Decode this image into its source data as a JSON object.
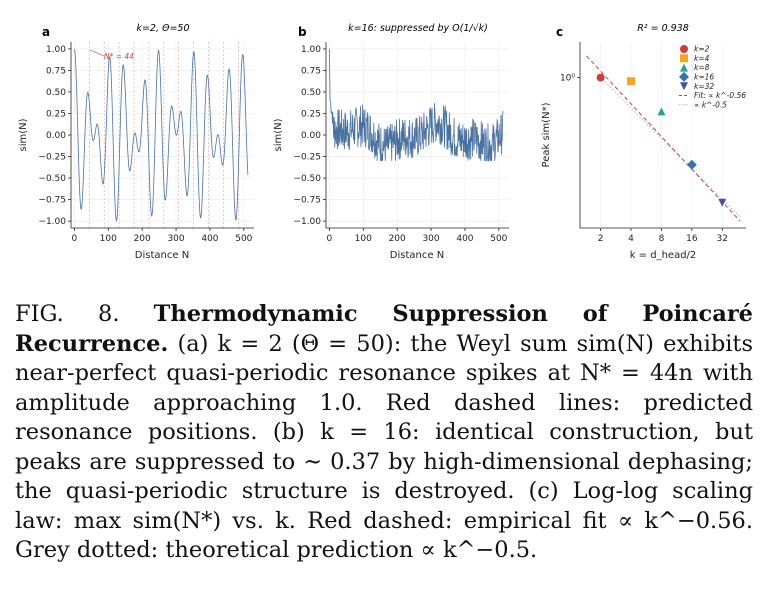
{
  "figure": {
    "panels": [
      {
        "letter": "a",
        "title": "k=2,  Θ=50",
        "annotation": "N* = 44"
      },
      {
        "letter": "b",
        "title": "k=16:  suppressed by O(1/√k)"
      },
      {
        "letter": "c",
        "title": "R² = 0.938"
      }
    ]
  },
  "chart_data": [
    {
      "type": "line",
      "panel": "a",
      "title": "k=2,  Θ=50",
      "xlabel": "Distance N",
      "ylabel": "sim(N)",
      "xlim": [
        -10,
        530
      ],
      "ylim": [
        -1.08,
        1.08
      ],
      "xticks": [
        0,
        100,
        200,
        300,
        400,
        500
      ],
      "yticks": [
        1.0,
        0.75,
        0.5,
        0.25,
        0.0,
        -0.25,
        -0.5,
        -0.75,
        -1.0
      ],
      "ytick_labels": [
        "1.00",
        "0.75",
        "0.50",
        "0.25",
        "0.00",
        "−0.25",
        "−0.50",
        "−0.75",
        "−1.00"
      ],
      "xtick_labels": [
        "0",
        "100",
        "200",
        "300",
        "400",
        "500"
      ],
      "resonance_positions": [
        44,
        88,
        132,
        176,
        220,
        264,
        308,
        352,
        396,
        440,
        484
      ],
      "series": [
        {
          "generator": "cos(2πN/Θ)·cos(2πN/(√2·Θ)) quasi-periodic, N=0..512",
          "color": "#4a72a0"
        }
      ],
      "grid": true,
      "annotation": "N* = 44"
    },
    {
      "type": "line",
      "panel": "b",
      "title": "k=16:  suppressed by O(1/√k)",
      "xlabel": "Distance N",
      "ylabel": "sim(N)",
      "xlim": [
        -10,
        530
      ],
      "ylim": [
        -1.08,
        1.08
      ],
      "xticks": [
        0,
        100,
        200,
        300,
        400,
        500
      ],
      "yticks": [
        1.0,
        0.75,
        0.5,
        0.25,
        0.0,
        -0.25,
        -0.5,
        -0.75,
        -1.0
      ],
      "ytick_labels": [
        "1.00",
        "0.75",
        "0.50",
        "0.25",
        "0.00",
        "−0.25",
        "−0.50",
        "−0.75",
        "−1.00"
      ],
      "xtick_labels": [
        "0",
        "100",
        "200",
        "300",
        "400",
        "500"
      ],
      "peak_value": 0.37,
      "series": [
        {
          "generator": "noisy dephased sum around 0, amplitude ≈0.37, initial value 1.0",
          "color": "#4a72a0"
        }
      ],
      "grid": true
    },
    {
      "type": "scatter",
      "panel": "c",
      "title": "R² = 0.938",
      "xlabel": "k = d_head/2",
      "ylabel": "Peak sim(N*)",
      "xscale": "log",
      "yscale": "log",
      "xticks": [
        2,
        4,
        8,
        16,
        32
      ],
      "xtick_labels": [
        "2",
        "4",
        "8",
        "16",
        "32"
      ],
      "ytick_labels": [
        "10⁰"
      ],
      "points": [
        {
          "k": 2,
          "value": 1.0,
          "color": "#d03c3c",
          "marker": "circle"
        },
        {
          "k": 4,
          "value": 0.96,
          "color": "#f2a623",
          "marker": "square"
        },
        {
          "k": 8,
          "value": 0.68,
          "color": "#2aa198",
          "marker": "triangle-up"
        },
        {
          "k": 16,
          "value": 0.37,
          "color": "#3a6fb0",
          "marker": "diamond"
        },
        {
          "k": 32,
          "value": 0.24,
          "color": "#4b4ea8",
          "marker": "triangle-down"
        }
      ],
      "fit_exponent": -0.56,
      "theory_exponent": -0.5,
      "legend": {
        "placement": "top-right",
        "entries": [
          {
            "label": "k=2",
            "color": "#d03c3c",
            "marker": "circle"
          },
          {
            "label": "k=4",
            "color": "#f2a623",
            "marker": "square"
          },
          {
            "label": "k=8",
            "color": "#2aa198",
            "marker": "triangle-up"
          },
          {
            "label": "k=16",
            "color": "#3a6fb0",
            "marker": "diamond"
          },
          {
            "label": "k=32",
            "color": "#4b4ea8",
            "marker": "triangle-down"
          },
          {
            "label": "Fit: ∝ k^-0.56",
            "color": "#d03c3c",
            "marker": "dashed-line"
          },
          {
            "label": "∝ k^-0.5",
            "color": "#999999",
            "marker": "dotted-line"
          }
        ]
      }
    }
  ],
  "caption": {
    "prefix": "FIG. 8.",
    "bold": "Thermodynamic Suppression of Poincaré Recurrence.",
    "body": "(a) k = 2 (Θ = 50): the Weyl sum sim(N) exhibits near-perfect quasi-periodic resonance spikes at N* = 44n with amplitude approaching 1.0. Red dashed lines: predicted resonance positions. (b) k = 16: identical construction, but peaks are suppressed to ∼ 0.37 by high-dimensional dephasing; the quasi-periodic structure is destroyed. (c) Log-log scaling law: max sim(N*) vs. k. Red dashed: empirical fit ∝ k^−0.56. Grey dotted: theoretical prediction ∝ k^−0.5."
  },
  "colors": {
    "line": "#4a72a0",
    "resonance": "#e06060",
    "grid": "#e8e8e8"
  }
}
